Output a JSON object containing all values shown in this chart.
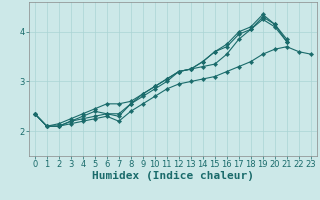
{
  "xlabel": "Humidex (Indice chaleur)",
  "xlim": [
    -0.5,
    23.5
  ],
  "ylim": [
    1.5,
    4.6
  ],
  "background_color": "#cce8e8",
  "line_color": "#1a6b6b",
  "grid_color": "#aad4d4",
  "series": [
    [
      2.35,
      2.1,
      2.1,
      2.15,
      2.2,
      2.25,
      2.3,
      2.2,
      2.4,
      2.55,
      2.7,
      2.85,
      2.95,
      3.0,
      3.05,
      3.1,
      3.2,
      3.3,
      3.4,
      3.55,
      3.65,
      3.7,
      3.6,
      3.55
    ],
    [
      2.35,
      2.1,
      2.1,
      2.2,
      2.25,
      2.3,
      2.35,
      2.35,
      2.55,
      2.7,
      2.85,
      3.0,
      3.2,
      3.25,
      3.3,
      3.35,
      3.55,
      3.85,
      4.05,
      4.25,
      4.1,
      3.8,
      null,
      null
    ],
    [
      2.35,
      2.1,
      2.1,
      2.2,
      2.3,
      2.4,
      2.35,
      2.3,
      2.55,
      2.75,
      2.9,
      3.05,
      3.2,
      3.25,
      3.4,
      3.6,
      3.7,
      3.95,
      4.05,
      4.3,
      4.15,
      3.8,
      null,
      null
    ],
    [
      2.35,
      2.1,
      2.15,
      2.25,
      2.35,
      2.45,
      2.55,
      2.55,
      2.6,
      2.75,
      2.9,
      3.05,
      3.2,
      3.25,
      3.4,
      3.6,
      3.75,
      4.0,
      4.1,
      4.35,
      4.15,
      3.85,
      null,
      null
    ]
  ],
  "xticks": [
    0,
    1,
    2,
    3,
    4,
    5,
    6,
    7,
    8,
    9,
    10,
    11,
    12,
    13,
    14,
    15,
    16,
    17,
    18,
    19,
    20,
    21,
    22,
    23
  ],
  "yticks": [
    2,
    3,
    4
  ],
  "axis_fontsize": 7,
  "tick_fontsize": 6,
  "xlabel_fontsize": 8
}
